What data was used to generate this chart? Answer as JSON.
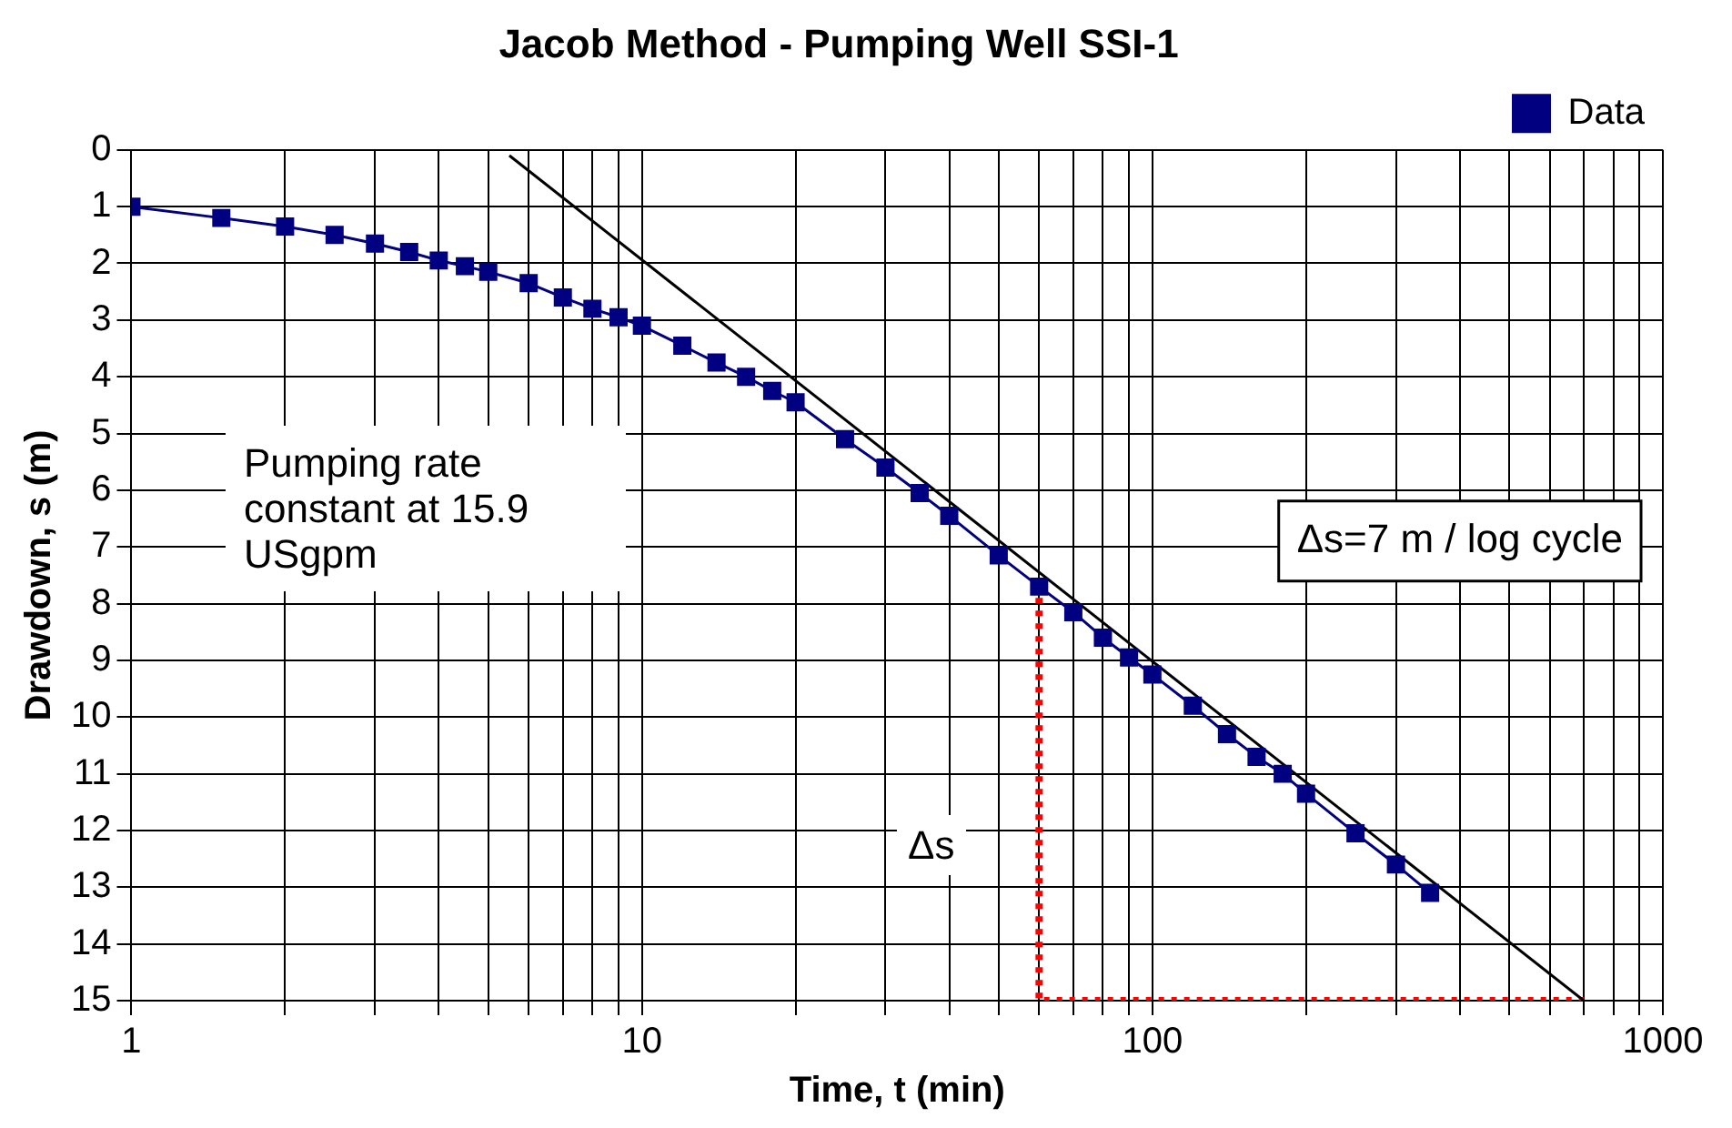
{
  "chart_data": {
    "type": "line",
    "title": "Jacob Method - Pumping Well SSI-1",
    "xlabel": "Time, t (min)",
    "ylabel": "Drawdown, s (m)",
    "log": "x",
    "grid": true,
    "legend": "top right",
    "xlim": [
      1,
      1000
    ],
    "ylim": [
      15,
      0
    ],
    "xticks": [
      1,
      {
        "value": 2,
        "label": null
      },
      {
        "value": 3,
        "label": null
      },
      {
        "value": 4,
        "label": null
      },
      {
        "value": 5,
        "label": null
      },
      {
        "value": 6,
        "label": null
      },
      {
        "value": 7,
        "label": null
      },
      {
        "value": 8,
        "label": null
      },
      {
        "value": 9,
        "label": null
      },
      10,
      {
        "value": 20,
        "label": null
      },
      {
        "value": 30,
        "label": null
      },
      {
        "value": 40,
        "label": null
      },
      {
        "value": 50,
        "label": null
      },
      {
        "value": 60,
        "label": null
      },
      {
        "value": 70,
        "label": null
      },
      {
        "value": 80,
        "label": null
      },
      {
        "value": 90,
        "label": null
      },
      100,
      {
        "value": 200,
        "label": null
      },
      {
        "value": 300,
        "label": null
      },
      {
        "value": 400,
        "label": null
      },
      {
        "value": 500,
        "label": null
      },
      {
        "value": 600,
        "label": null
      },
      {
        "value": 700,
        "label": null
      },
      {
        "value": 800,
        "label": null
      },
      {
        "value": 900,
        "label": null
      },
      1000
    ],
    "yticks": [
      0,
      1,
      2,
      3,
      4,
      5,
      6,
      7,
      8,
      9,
      10,
      11,
      12,
      13,
      14,
      15
    ],
    "series": [
      {
        "name": "Data",
        "marker": "square",
        "color": "#000080",
        "x": [
          1,
          1.5,
          2,
          2.5,
          3,
          3.5,
          4,
          4.5,
          5,
          6,
          7,
          8,
          9,
          10,
          12,
          14,
          16,
          18,
          20,
          25,
          30,
          35,
          40,
          50,
          60,
          70,
          80,
          90,
          100,
          120,
          140,
          160,
          180,
          200,
          250,
          300,
          350
        ],
        "values": [
          1.0,
          1.2,
          1.35,
          1.5,
          1.65,
          1.8,
          1.95,
          2.05,
          2.15,
          2.35,
          2.6,
          2.8,
          2.95,
          3.1,
          3.45,
          3.75,
          4.0,
          4.25,
          4.45,
          5.1,
          5.6,
          6.05,
          6.45,
          7.15,
          7.7,
          8.15,
          8.6,
          8.95,
          9.25,
          9.8,
          10.3,
          10.7,
          11.0,
          11.35,
          12.05,
          12.6,
          13.1
        ]
      },
      {
        "type": "line",
        "marker": "none",
        "line_style": "solid",
        "color": "#000000",
        "x": [
          5.5,
          700
        ],
        "values": [
          0.1,
          15
        ]
      },
      {
        "type": "line",
        "marker": "none",
        "line_style": "dotted",
        "color": "#ff0000",
        "x": [
          60,
          60,
          700
        ],
        "values": [
          7.9,
          15,
          15
        ]
      }
    ],
    "annotations": [
      "Pumping rate constant at 15.9 USgpm",
      "Δs=7 m / log cycle",
      "Δs"
    ]
  }
}
